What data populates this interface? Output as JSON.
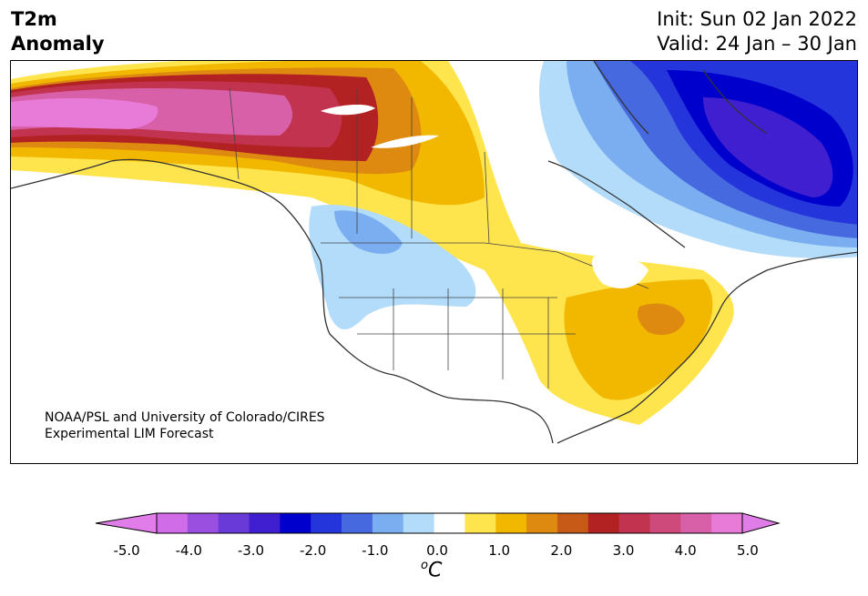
{
  "header": {
    "title_line1": "T2m",
    "title_line2": "Anomaly",
    "init_label": "Init: Sun 02 Jan 2022",
    "valid_label": "Valid: 24 Jan – 30 Jan"
  },
  "credit": {
    "line1": "NOAA/PSL and University of Colorado/CIRES",
    "line2": "Experimental LIM Forecast"
  },
  "colorbar": {
    "unit_symbol": "C",
    "unit_superscript": "o",
    "levels": [
      -5.0,
      -4.5,
      -4.0,
      -3.5,
      -3.0,
      -2.5,
      -2.0,
      -1.5,
      -1.0,
      -0.5,
      0.5,
      1.0,
      1.5,
      2.0,
      2.5,
      3.0,
      3.5,
      4.0,
      4.5,
      5.0
    ],
    "colors": [
      "#d16ce8",
      "#9b4fe0",
      "#6a3ad9",
      "#3f1fd0",
      "#0000cd",
      "#2535dc",
      "#4669e0",
      "#7aaef0",
      "#b3dcfb",
      "#ffffff",
      "#ffe54d",
      "#f2b800",
      "#de8a10",
      "#c85a17",
      "#b22222",
      "#c2334f",
      "#cd4a7a",
      "#d860a8",
      "#e87ad8"
    ],
    "under_color": "#e07de8",
    "over_color": "#e07de8",
    "tick_labels": [
      "-5.0",
      "-4.0",
      "-3.0",
      "-2.0",
      "-1.0",
      "0.0",
      "1.0",
      "2.0",
      "3.0",
      "4.0",
      "5.0"
    ]
  },
  "map": {
    "region": "North America",
    "variable": "2 m temperature anomaly"
  }
}
